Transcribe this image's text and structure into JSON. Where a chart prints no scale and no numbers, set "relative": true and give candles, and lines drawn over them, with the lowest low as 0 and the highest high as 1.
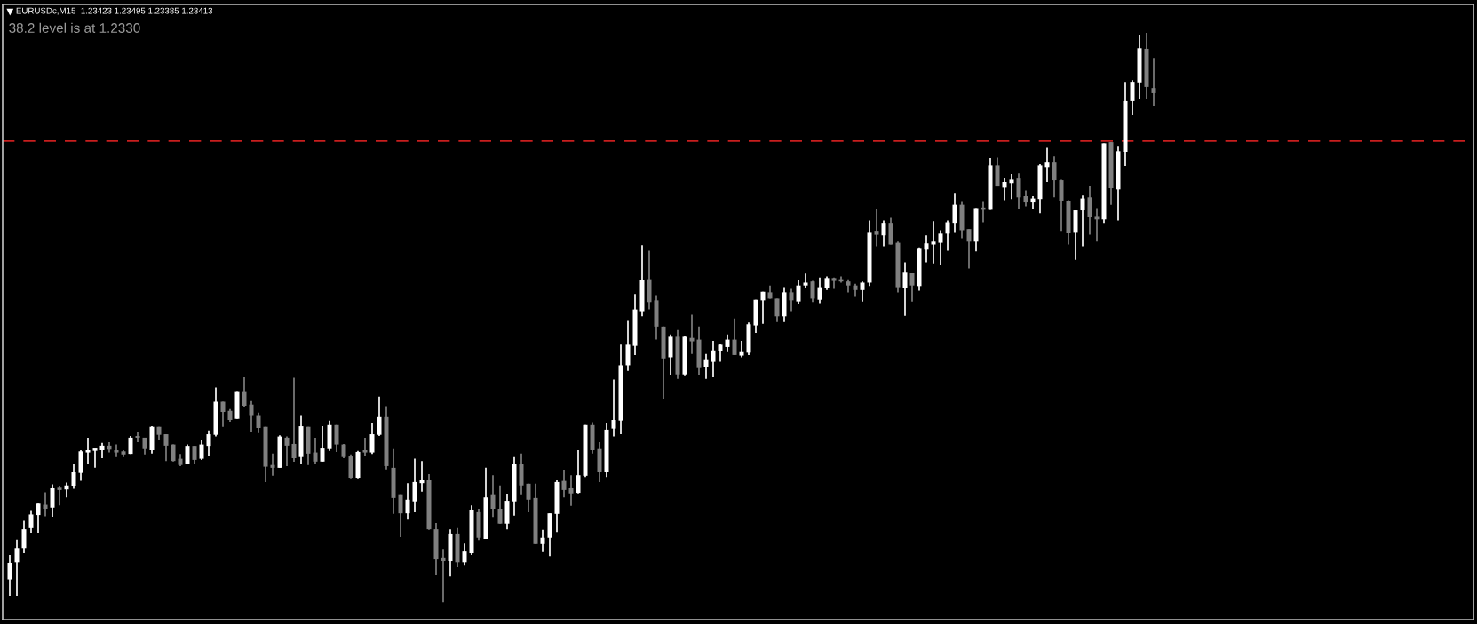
{
  "chart_data": {
    "type": "candlestick",
    "relative": true,
    "title": "EURUSDc,M15  1.23423 1.23495 1.23385 1.23413",
    "annotations": [
      "38.2 level is at 1.2330"
    ],
    "grid": false,
    "legend": false,
    "categories": [
      null,
      null,
      null,
      null,
      null,
      null,
      null,
      null,
      null,
      null,
      null,
      null,
      null,
      null,
      null,
      null,
      null,
      null,
      null,
      null,
      null,
      null,
      null,
      null,
      null,
      null,
      null,
      null,
      null,
      null,
      null,
      null,
      null,
      null,
      null,
      null,
      null,
      null,
      null,
      null,
      null,
      null,
      null,
      null,
      null,
      null,
      null,
      null,
      null,
      null,
      null,
      null,
      null,
      null,
      null,
      null,
      null,
      null,
      null,
      null,
      null,
      null,
      null,
      null,
      null,
      null,
      null,
      null,
      null,
      null,
      null,
      null,
      null,
      null,
      null,
      null,
      null,
      null,
      null,
      null,
      null,
      null,
      null,
      null,
      null,
      null,
      null,
      null,
      null,
      null,
      null,
      null,
      null,
      null,
      null,
      null,
      null,
      null,
      null,
      null,
      null,
      null,
      null,
      null,
      null,
      null,
      null,
      null,
      null,
      null,
      null,
      null,
      null,
      null,
      null,
      null,
      null,
      null,
      null,
      null,
      null,
      null,
      null,
      null,
      null,
      null,
      null,
      null,
      null,
      null,
      null,
      null,
      null,
      null,
      null,
      null,
      null,
      null,
      null,
      null,
      null,
      null,
      null,
      null,
      null,
      null,
      null,
      null,
      null,
      null,
      null,
      null,
      null,
      null,
      null,
      null,
      null,
      null,
      null,
      null,
      null,
      null
    ],
    "ref_lines": [
      {
        "axis": "y",
        "value": 0.81,
        "color": "#c81e1e",
        "line_style": "dashed"
      }
    ],
    "ohlc": [
      [
        0.04,
        0.083,
        0.01,
        0.069
      ],
      [
        0.07,
        0.11,
        0.01,
        0.095
      ],
      [
        0.095,
        0.143,
        0.086,
        0.128
      ],
      [
        0.13,
        0.16,
        0.122,
        0.154
      ],
      [
        0.153,
        0.173,
        0.122,
        0.173
      ],
      [
        0.171,
        0.193,
        0.151,
        0.164
      ],
      [
        0.166,
        0.207,
        0.15,
        0.2
      ],
      [
        0.2,
        0.203,
        0.17,
        0.197
      ],
      [
        0.198,
        0.21,
        0.184,
        0.205
      ],
      [
        0.203,
        0.242,
        0.199,
        0.228
      ],
      [
        0.227,
        0.267,
        0.213,
        0.265
      ],
      [
        0.263,
        0.288,
        0.242,
        0.267
      ],
      [
        0.266,
        0.268,
        0.236,
        0.268
      ],
      [
        0.267,
        0.28,
        0.253,
        0.275
      ],
      [
        0.275,
        0.281,
        0.263,
        0.268
      ],
      [
        0.267,
        0.277,
        0.255,
        0.263
      ],
      [
        0.265,
        0.267,
        0.255,
        0.258
      ],
      [
        0.259,
        0.292,
        0.259,
        0.289
      ],
      [
        0.289,
        0.298,
        0.281,
        0.288
      ],
      [
        0.289,
        0.289,
        0.258,
        0.269
      ],
      [
        0.267,
        0.309,
        0.261,
        0.308
      ],
      [
        0.308,
        0.308,
        0.284,
        0.294
      ],
      [
        0.295,
        0.295,
        0.248,
        0.275
      ],
      [
        0.277,
        0.277,
        0.247,
        0.248
      ],
      [
        0.252,
        0.259,
        0.239,
        0.241
      ],
      [
        0.242,
        0.277,
        0.242,
        0.273
      ],
      [
        0.273,
        0.273,
        0.242,
        0.25
      ],
      [
        0.252,
        0.284,
        0.25,
        0.277
      ],
      [
        0.273,
        0.3,
        0.256,
        0.295
      ],
      [
        0.294,
        0.377,
        0.291,
        0.352
      ],
      [
        0.352,
        0.352,
        0.308,
        0.334
      ],
      [
        0.336,
        0.339,
        0.317,
        0.32
      ],
      [
        0.322,
        0.369,
        0.322,
        0.369
      ],
      [
        0.369,
        0.395,
        0.342,
        0.345
      ],
      [
        0.347,
        0.353,
        0.298,
        0.327
      ],
      [
        0.327,
        0.333,
        0.297,
        0.306
      ],
      [
        0.308,
        0.308,
        0.211,
        0.238
      ],
      [
        0.241,
        0.261,
        0.222,
        0.236
      ],
      [
        0.236,
        0.293,
        0.236,
        0.291
      ],
      [
        0.289,
        0.291,
        0.239,
        0.275
      ],
      [
        0.278,
        0.394,
        0.245,
        0.253
      ],
      [
        0.255,
        0.327,
        0.242,
        0.309
      ],
      [
        0.308,
        0.308,
        0.241,
        0.261
      ],
      [
        0.263,
        0.288,
        0.242,
        0.247
      ],
      [
        0.247,
        0.309,
        0.247,
        0.27
      ],
      [
        0.269,
        0.319,
        0.266,
        0.311
      ],
      [
        0.311,
        0.311,
        0.264,
        0.277
      ],
      [
        0.277,
        0.278,
        0.253,
        0.255
      ],
      [
        0.256,
        0.258,
        0.216,
        0.217
      ],
      [
        0.217,
        0.266,
        0.216,
        0.264
      ],
      [
        0.264,
        0.288,
        0.256,
        0.263
      ],
      [
        0.263,
        0.314,
        0.259,
        0.295
      ],
      [
        0.294,
        0.361,
        0.292,
        0.325
      ],
      [
        0.325,
        0.344,
        0.233,
        0.239
      ],
      [
        0.236,
        0.269,
        0.155,
        0.183
      ],
      [
        0.188,
        0.188,
        0.114,
        0.156
      ],
      [
        0.156,
        0.209,
        0.145,
        0.18
      ],
      [
        0.177,
        0.252,
        0.158,
        0.211
      ],
      [
        0.209,
        0.248,
        0.194,
        0.214
      ],
      [
        0.214,
        0.225,
        0.127,
        0.128
      ],
      [
        0.128,
        0.139,
        0.047,
        0.075
      ],
      [
        0.077,
        0.092,
        0.0,
        0.072
      ],
      [
        0.072,
        0.128,
        0.045,
        0.119
      ],
      [
        0.119,
        0.13,
        0.061,
        0.07
      ],
      [
        0.07,
        0.103,
        0.064,
        0.089
      ],
      [
        0.086,
        0.17,
        0.083,
        0.161
      ],
      [
        0.158,
        0.164,
        0.109,
        0.113
      ],
      [
        0.111,
        0.236,
        0.111,
        0.184
      ],
      [
        0.188,
        0.223,
        0.148,
        0.163
      ],
      [
        0.164,
        0.205,
        0.138,
        0.138
      ],
      [
        0.138,
        0.189,
        0.128,
        0.178
      ],
      [
        0.177,
        0.255,
        0.152,
        0.242
      ],
      [
        0.242,
        0.261,
        0.188,
        0.205
      ],
      [
        0.208,
        0.208,
        0.158,
        0.18
      ],
      [
        0.183,
        0.208,
        0.102,
        0.102
      ],
      [
        0.102,
        0.127,
        0.088,
        0.113
      ],
      [
        0.113,
        0.156,
        0.081,
        0.156
      ],
      [
        0.155,
        0.214,
        0.123,
        0.211
      ],
      [
        0.213,
        0.231,
        0.184,
        0.197
      ],
      [
        0.2,
        0.223,
        0.169,
        0.191
      ],
      [
        0.192,
        0.267,
        0.191,
        0.223
      ],
      [
        0.222,
        0.311,
        0.22,
        0.311
      ],
      [
        0.311,
        0.316,
        0.261,
        0.267
      ],
      [
        0.269,
        0.281,
        0.211,
        0.228
      ],
      [
        0.228,
        0.314,
        0.22,
        0.303
      ],
      [
        0.305,
        0.391,
        0.291,
        0.32
      ],
      [
        0.319,
        0.452,
        0.295,
        0.416
      ],
      [
        0.416,
        0.494,
        0.406,
        0.452
      ],
      [
        0.45,
        0.541,
        0.434,
        0.514
      ],
      [
        0.511,
        0.627,
        0.502,
        0.566
      ],
      [
        0.567,
        0.617,
        0.514,
        0.527
      ],
      [
        0.53,
        0.539,
        0.461,
        0.484
      ],
      [
        0.484,
        0.484,
        0.356,
        0.428
      ],
      [
        0.43,
        0.47,
        0.398,
        0.466
      ],
      [
        0.466,
        0.478,
        0.392,
        0.4
      ],
      [
        0.4,
        0.467,
        0.397,
        0.466
      ],
      [
        0.464,
        0.505,
        0.436,
        0.458
      ],
      [
        0.461,
        0.484,
        0.398,
        0.411
      ],
      [
        0.413,
        0.436,
        0.392,
        0.425
      ],
      [
        0.422,
        0.459,
        0.395,
        0.442
      ],
      [
        0.441,
        0.453,
        0.422,
        0.452
      ],
      [
        0.448,
        0.47,
        0.439,
        0.461
      ],
      [
        0.461,
        0.498,
        0.434,
        0.434
      ],
      [
        0.433,
        0.459,
        0.43,
        0.439
      ],
      [
        0.438,
        0.491,
        0.434,
        0.488
      ],
      [
        0.486,
        0.531,
        0.473,
        0.531
      ],
      [
        0.53,
        0.545,
        0.489,
        0.545
      ],
      [
        0.544,
        0.556,
        0.533,
        0.533
      ],
      [
        0.533,
        0.533,
        0.492,
        0.502
      ],
      [
        0.502,
        0.553,
        0.492,
        0.544
      ],
      [
        0.544,
        0.55,
        0.511,
        0.53
      ],
      [
        0.528,
        0.566,
        0.523,
        0.556
      ],
      [
        0.556,
        0.577,
        0.552,
        0.561
      ],
      [
        0.563,
        0.564,
        0.527,
        0.533
      ],
      [
        0.531,
        0.57,
        0.525,
        0.553
      ],
      [
        0.552,
        0.572,
        0.548,
        0.569
      ],
      [
        0.569,
        0.57,
        0.55,
        0.564
      ],
      [
        0.566,
        0.572,
        0.561,
        0.563
      ],
      [
        0.563,
        0.567,
        0.544,
        0.556
      ],
      [
        0.556,
        0.559,
        0.536,
        0.548
      ],
      [
        0.548,
        0.563,
        0.528,
        0.561
      ],
      [
        0.561,
        0.67,
        0.555,
        0.65
      ],
      [
        0.652,
        0.691,
        0.625,
        0.645
      ],
      [
        0.644,
        0.67,
        0.625,
        0.666
      ],
      [
        0.666,
        0.675,
        0.628,
        0.628
      ],
      [
        0.631,
        0.633,
        0.544,
        0.553
      ],
      [
        0.552,
        0.597,
        0.503,
        0.58
      ],
      [
        0.578,
        0.578,
        0.528,
        0.556
      ],
      [
        0.555,
        0.623,
        0.547,
        0.622
      ],
      [
        0.619,
        0.644,
        0.597,
        0.63
      ],
      [
        0.628,
        0.669,
        0.595,
        0.633
      ],
      [
        0.631,
        0.653,
        0.592,
        0.647
      ],
      [
        0.647,
        0.67,
        0.617,
        0.667
      ],
      [
        0.666,
        0.719,
        0.65,
        0.698
      ],
      [
        0.698,
        0.703,
        0.639,
        0.653
      ],
      [
        0.655,
        0.655,
        0.586,
        0.633
      ],
      [
        0.633,
        0.692,
        0.616,
        0.692
      ],
      [
        0.69,
        0.703,
        0.667,
        0.689
      ],
      [
        0.689,
        0.78,
        0.689,
        0.767
      ],
      [
        0.767,
        0.781,
        0.73,
        0.73
      ],
      [
        0.728,
        0.745,
        0.706,
        0.738
      ],
      [
        0.736,
        0.752,
        0.708,
        0.742
      ],
      [
        0.744,
        0.753,
        0.691,
        0.711
      ],
      [
        0.713,
        0.723,
        0.695,
        0.702
      ],
      [
        0.702,
        0.713,
        0.691,
        0.709
      ],
      [
        0.708,
        0.769,
        0.683,
        0.767
      ],
      [
        0.764,
        0.798,
        0.738,
        0.772
      ],
      [
        0.772,
        0.783,
        0.711,
        0.741
      ],
      [
        0.741,
        0.742,
        0.652,
        0.705
      ],
      [
        0.705,
        0.706,
        0.628,
        0.648
      ],
      [
        0.65,
        0.688,
        0.601,
        0.688
      ],
      [
        0.688,
        0.714,
        0.625,
        0.709
      ],
      [
        0.711,
        0.73,
        0.645,
        0.677
      ],
      [
        0.678,
        0.692,
        0.633,
        0.672
      ],
      [
        0.672,
        0.806,
        0.666,
        0.806
      ],
      [
        0.808,
        0.808,
        0.698,
        0.727
      ],
      [
        0.725,
        0.8,
        0.67,
        0.792
      ],
      [
        0.791,
        0.914,
        0.766,
        0.88
      ],
      [
        0.88,
        0.917,
        0.855,
        0.914
      ],
      [
        0.913,
        0.997,
        0.884,
        0.973
      ],
      [
        0.972,
        1.0,
        0.884,
        0.905
      ],
      [
        0.903,
        0.956,
        0.872,
        0.894
      ]
    ]
  }
}
